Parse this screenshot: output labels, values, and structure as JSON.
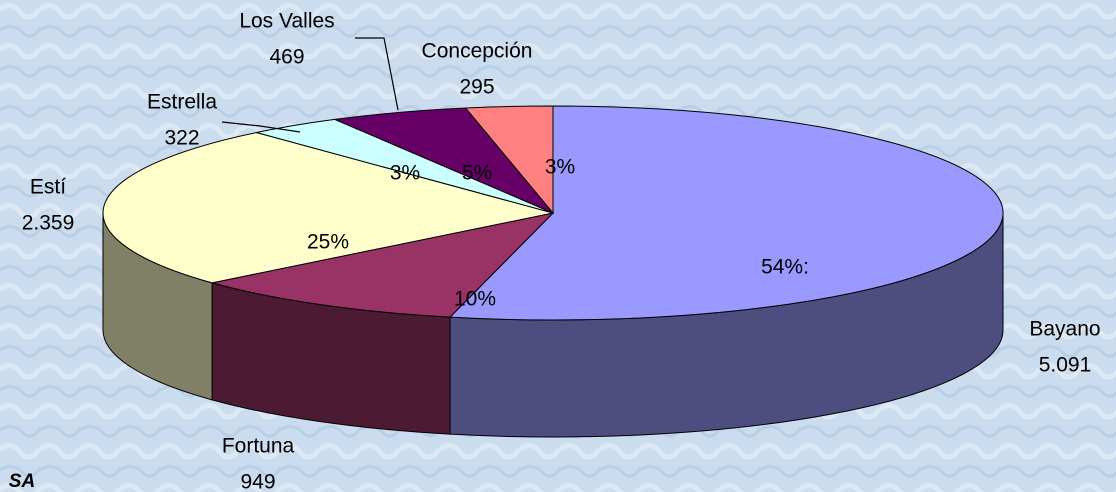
{
  "chart_data": {
    "type": "pie",
    "style": "3d",
    "categories": [
      "Bayano",
      "Fortuna",
      "Estí",
      "Estrella",
      "Los Valles",
      "Concepción"
    ],
    "values": [
      5091,
      949,
      2359,
      322,
      469,
      295
    ],
    "value_labels": [
      "5.091",
      "949",
      "2.359",
      "322",
      "469",
      "295"
    ],
    "percent_labels": [
      "54%:",
      "10%",
      "25%",
      "3%",
      "5%",
      "3%"
    ],
    "colors": [
      "#9999ff",
      "#993366",
      "#ffffcc",
      "#ccffff",
      "#660066",
      "#ff8080"
    ],
    "footer": "SA"
  }
}
